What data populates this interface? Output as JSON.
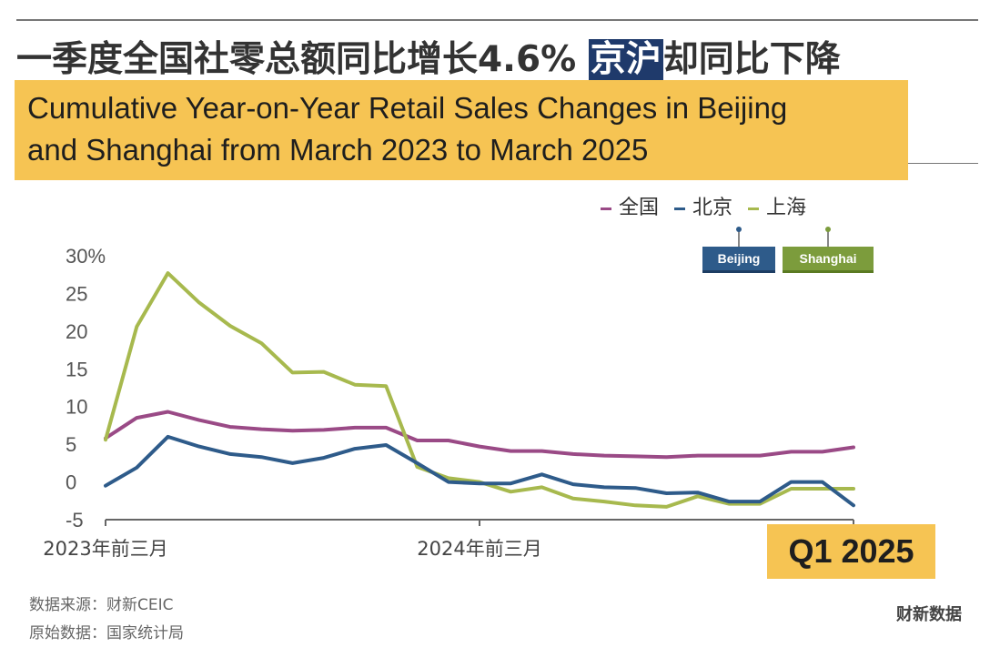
{
  "header": {
    "title_cn_prefix": "一季度全国社零总额同比增长4.6%",
    "title_cn_highlight": "京沪",
    "title_cn_suffix": "却同比下降",
    "title_en_line1": "Cumulative Year-on-Year Retail Sales Changes in Beijing",
    "title_en_line2": "and Shanghai from March 2023 to March 2025"
  },
  "legend": {
    "items": [
      {
        "label": "全国",
        "color": "#9a4a86"
      },
      {
        "label": "北京",
        "color": "#2e5b8a"
      },
      {
        "label": "上海",
        "color": "#a7b94e"
      }
    ]
  },
  "tags": {
    "beijing": "Beijing",
    "shanghai": "Shanghai"
  },
  "callout": {
    "label": "Q1 2025"
  },
  "footer": {
    "source": "数据来源：财新CEIC",
    "original": "原始数据：国家统计局",
    "brand": "财新数据"
  },
  "colors": {
    "national": "#9a4a86",
    "beijing": "#2e5b8a",
    "shanghai": "#a7b94e",
    "accent": "#f6c453"
  },
  "chart_data": {
    "type": "line",
    "x": [
      "2023-03",
      "2023-04",
      "2023-05",
      "2023-06",
      "2023-07",
      "2023-08",
      "2023-09",
      "2023-10",
      "2023-11",
      "2023-12",
      "2024-01",
      "2024-02",
      "2024-03",
      "2024-04",
      "2024-05",
      "2024-06",
      "2024-07",
      "2024-08",
      "2024-09",
      "2024-10",
      "2024-11",
      "2024-12",
      "2025-01",
      "2025-02",
      "2025-03"
    ],
    "x_tick_labels": [
      {
        "x": "2023-03",
        "label": "2023年前三月"
      },
      {
        "x": "2024-03",
        "label": "2024年前三月"
      }
    ],
    "ylim": [
      -5,
      30
    ],
    "y_ticks": [
      -5,
      0,
      5,
      10,
      15,
      20,
      25,
      30
    ],
    "y_tick_labels": [
      "-5",
      "0",
      "5",
      "10",
      "15",
      "20",
      "25",
      "30%"
    ],
    "series": [
      {
        "name": "全国",
        "color": "#9a4a86",
        "values": [
          5.8,
          8.5,
          9.3,
          8.2,
          7.3,
          7.0,
          6.8,
          6.9,
          7.2,
          7.2,
          5.5,
          5.5,
          4.7,
          4.1,
          4.1,
          3.7,
          3.5,
          3.4,
          3.3,
          3.5,
          3.5,
          3.5,
          4.0,
          4.0,
          4.6
        ]
      },
      {
        "name": "北京",
        "color": "#2e5b8a",
        "values": [
          -0.5,
          1.9,
          6.0,
          4.7,
          3.7,
          3.3,
          2.5,
          3.2,
          4.4,
          4.9,
          2.5,
          0.0,
          -0.2,
          -0.2,
          1.0,
          -0.3,
          -0.7,
          -0.8,
          -1.5,
          -1.4,
          -2.6,
          -2.6,
          0.0,
          0.0,
          -3.1
        ]
      },
      {
        "name": "上海",
        "color": "#a7b94e",
        "values": [
          5.6,
          20.6,
          27.7,
          23.8,
          20.7,
          18.4,
          14.5,
          14.6,
          12.9,
          12.7,
          2.0,
          0.5,
          0.0,
          -1.3,
          -0.7,
          -2.2,
          -2.6,
          -3.1,
          -3.3,
          -1.9,
          -2.9,
          -2.9,
          -0.9,
          -0.9,
          -0.9
        ]
      }
    ]
  }
}
